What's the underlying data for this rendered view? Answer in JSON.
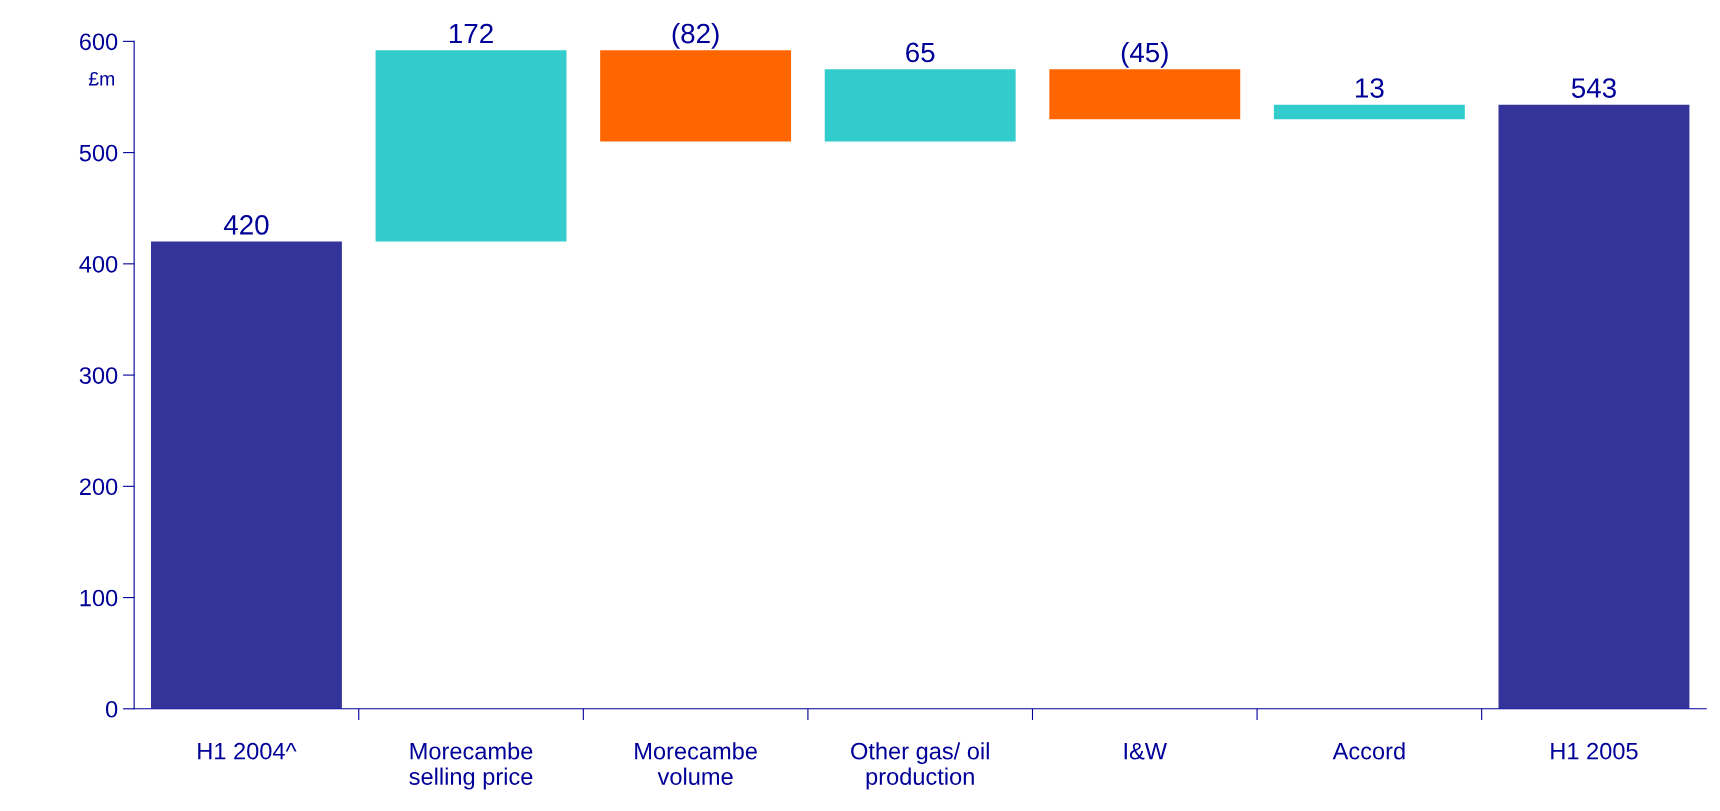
{
  "chart_data": {
    "type": "bar",
    "ylabel": "£m",
    "categories": [
      "H1 2004^",
      "Morecambe\nselling price",
      "Morecambe\nvolume",
      "Other gas/ oil\nproduction",
      "I&W",
      "Accord",
      "H1 2005"
    ],
    "base": [
      0,
      420,
      592,
      510,
      575,
      530,
      0
    ],
    "values": [
      420,
      172,
      -82,
      65,
      -45,
      13,
      543
    ],
    "value_labels": [
      "420",
      "172",
      "(82)",
      "65",
      "(45)",
      "13",
      "543"
    ],
    "colors": [
      "#333399",
      "#33cccc",
      "#ff6600",
      "#33cccc",
      "#ff6600",
      "#33cccc",
      "#333399"
    ],
    "ylim": [
      0,
      600
    ],
    "yticks": [
      0,
      100,
      200,
      300,
      400,
      500,
      600
    ],
    "grid": false,
    "legend": false
  }
}
